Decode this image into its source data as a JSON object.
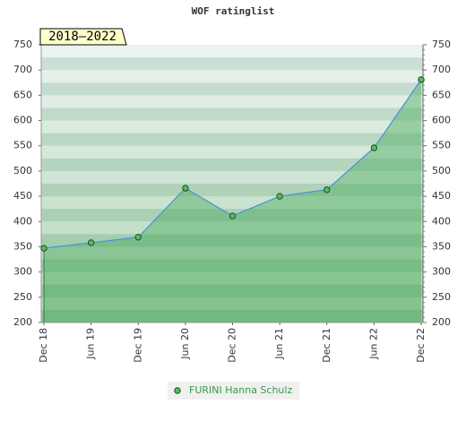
{
  "chart_data": {
    "type": "line",
    "title": "WOF ratinglist",
    "annotation": "2018–2022",
    "categories": [
      "Dec 18",
      "Jun 19",
      "Dec 19",
      "Jun 20",
      "Dec 20",
      "Jun 21",
      "Dec 21",
      "Jun 22",
      "Dec 22"
    ],
    "series": [
      {
        "name": "FURINI Hanna Schulz",
        "color": "#4a90d9",
        "marker_color": "#5cb85c",
        "values": [
          347,
          358,
          369,
          466,
          411,
          450,
          463,
          546,
          681
        ]
      }
    ],
    "ylim": [
      200,
      750
    ],
    "yticks": [
      200,
      250,
      300,
      350,
      400,
      450,
      500,
      550,
      600,
      650,
      700,
      750
    ],
    "y2lim": [
      200,
      750
    ],
    "y2ticks": [
      200,
      250,
      300,
      350,
      400,
      450,
      500,
      550,
      600,
      650,
      700,
      750
    ],
    "area_fill": "#4aab5e",
    "legend": "bottom"
  }
}
